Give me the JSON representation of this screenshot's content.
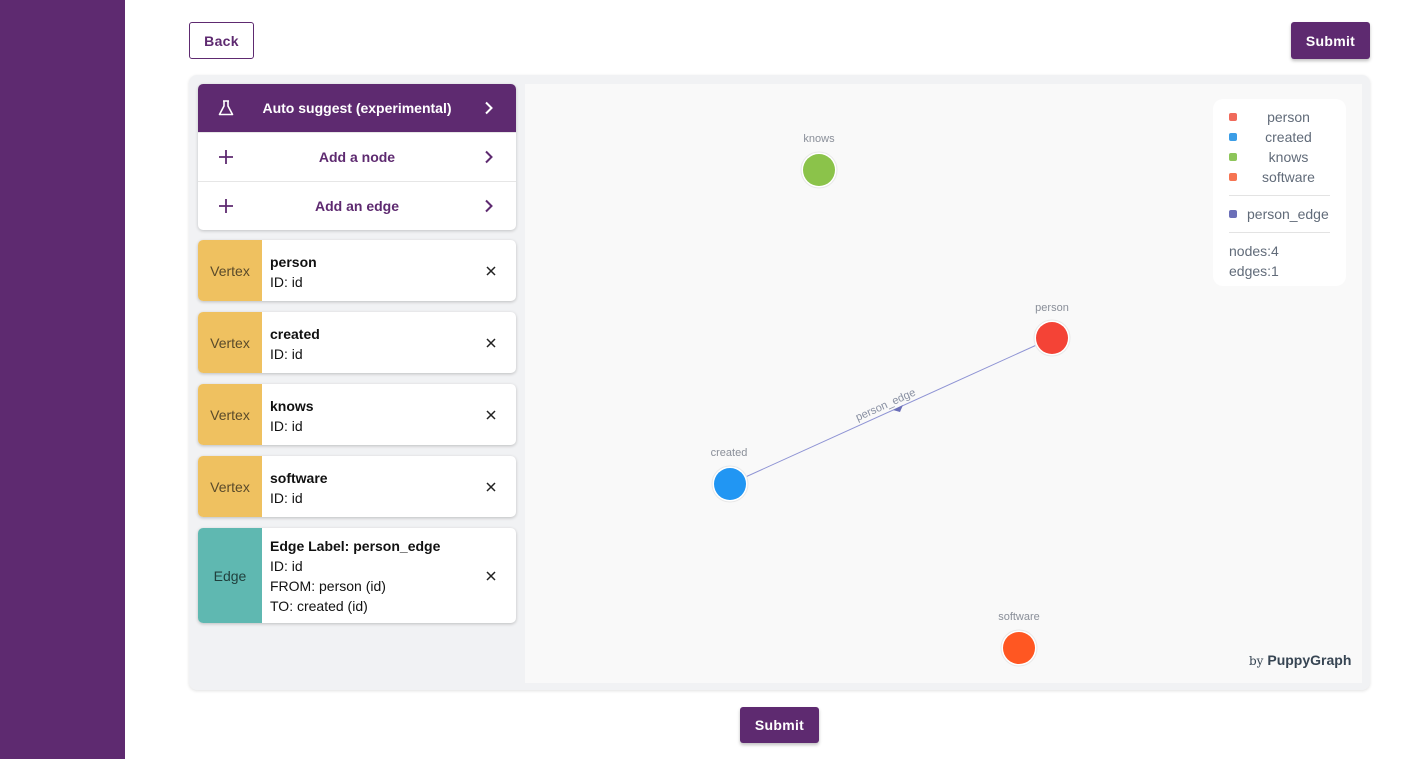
{
  "header": {
    "back_label": "Back",
    "submit_label": "Submit"
  },
  "footer": {
    "submit_label": "Submit"
  },
  "menu": {
    "auto_suggest": "Auto suggest (experimental)",
    "add_node": "Add a node",
    "add_edge": "Add an edge"
  },
  "cards": [
    {
      "tag": "Vertex",
      "title": "person",
      "lines": [
        "ID: id"
      ]
    },
    {
      "tag": "Vertex",
      "title": "created",
      "lines": [
        "ID: id"
      ]
    },
    {
      "tag": "Vertex",
      "title": "knows",
      "lines": [
        "ID: id"
      ]
    },
    {
      "tag": "Vertex",
      "title": "software",
      "lines": [
        "ID: id"
      ]
    },
    {
      "tag": "Edge",
      "title": "Edge Label: person_edge",
      "lines": [
        "ID: id",
        "FROM: person (id)",
        "TO: created (id)"
      ]
    }
  ],
  "legend": {
    "nodes": [
      {
        "label": "person",
        "color": "#f06a5b"
      },
      {
        "label": "created",
        "color": "#3b9de6"
      },
      {
        "label": "knows",
        "color": "#8dc55a"
      },
      {
        "label": "software",
        "color": "#f67452"
      }
    ],
    "edges": [
      {
        "label": "person_edge",
        "color": "#6b6fb8"
      }
    ],
    "nodes_count": "nodes:4",
    "edges_count": "edges:1"
  },
  "graph": {
    "nodes": [
      {
        "label": "knows",
        "color": "#8bc34a"
      },
      {
        "label": "person",
        "color": "#f44336"
      },
      {
        "label": "created",
        "color": "#2196f3"
      },
      {
        "label": "software",
        "color": "#ff5722"
      }
    ],
    "edge_label": "person_edge",
    "edge_color": "#8e93d4"
  },
  "brand": {
    "by": "by",
    "name": "PuppyGraph"
  }
}
